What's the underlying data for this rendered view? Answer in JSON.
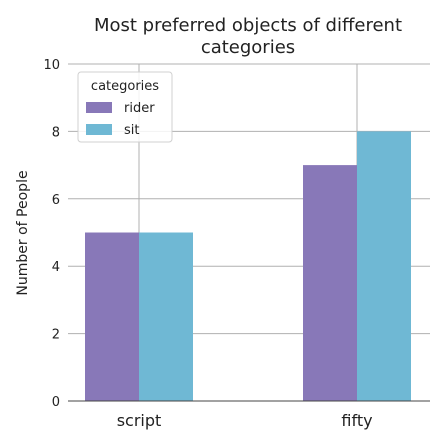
{
  "chart_data": {
    "type": "bar",
    "title": "Most preferred objects of different categories",
    "title_lines": [
      "Most preferred objects of different",
      "categories"
    ],
    "xlabel": "",
    "ylabel": "Number of People",
    "categories": [
      "script",
      "fifty"
    ],
    "series": [
      {
        "name": "rider",
        "values": [
          5,
          7
        ],
        "color": "#8878b8"
      },
      {
        "name": "sit",
        "values": [
          5,
          8
        ],
        "color": "#6fb8d4"
      }
    ],
    "ylim": [
      0,
      10
    ],
    "yticks": [
      "0",
      "2",
      "4",
      "6",
      "8",
      "10"
    ],
    "grid": true,
    "legend": {
      "title": "categories",
      "placement": "top-left"
    }
  }
}
